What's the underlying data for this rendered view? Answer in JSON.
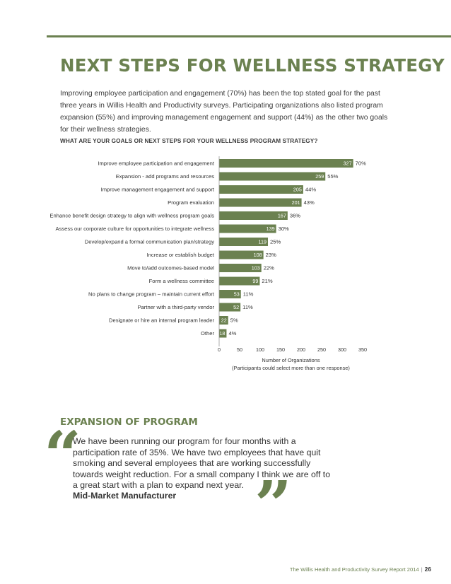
{
  "page": {
    "title": "NEXT STEPS FOR WELLNESS STRATEGY",
    "intro": "Improving employee participation and engagement (70%) has been the top stated goal for the past three years in Willis Health and Productivity surveys. Participating organizations also listed program expansion (55%) and improving management engagement and support (44%) as the other two goals for their wellness strategies.",
    "chart_question": "WHAT ARE YOUR GOALS OR NEXT STEPS FOR YOUR WELLNESS PROGRAM STRATEGY?"
  },
  "chart_data": {
    "type": "bar",
    "orientation": "horizontal",
    "categories": [
      "Improve employee participation and engagement",
      "Expansion - add programs and resources",
      "Improve management engagement and support",
      "Program evaluation",
      "Enhance benefit design strategy to align with wellness program goals",
      "Assess our corporate culture for opportunities to integrate wellness",
      "Develop/expand a formal communication plan/strategy",
      "Increase or establish budget",
      "Move to/add outcomes-based model",
      "Form a wellness committee",
      "No plans to change program – maintain current effort",
      "Partner with a third-party vendor",
      "Designate or hire an internal program leader",
      "Other"
    ],
    "values": [
      327,
      259,
      205,
      201,
      167,
      139,
      119,
      108,
      103,
      99,
      53,
      52,
      22,
      18
    ],
    "percent_labels": [
      "70%",
      "55%",
      "44%",
      "43%",
      "36%",
      "30%",
      "25%",
      "23%",
      "22%",
      "21%",
      "11%",
      "11%",
      "5%",
      "4%"
    ],
    "xlim": [
      0,
      350
    ],
    "xticks": [
      0,
      50,
      100,
      150,
      200,
      250,
      300,
      350
    ],
    "xlabel": "Number of Organizations",
    "xlabel_note": "(Participants could select more than one response)",
    "bar_color": "#6b8150",
    "grid": false
  },
  "section": {
    "title": "EXPANSION OF PROGRAM",
    "quote": "We have been running our program for four months with a participation rate of 35%. We have two employees that have quit smoking and several employees that are working successfully towards weight reduction. For a small company I think we are off to a great start with a plan to expand next year.",
    "author": "Mid-Market Manufacturer",
    "open_quote": "“",
    "close_quote": "”"
  },
  "footer": {
    "text": "The Willis Health and Productivity Survey Report 2014",
    "separator": "|",
    "page_number": "26"
  },
  "colors": {
    "accent": "#6b8150",
    "text": "#333333"
  }
}
